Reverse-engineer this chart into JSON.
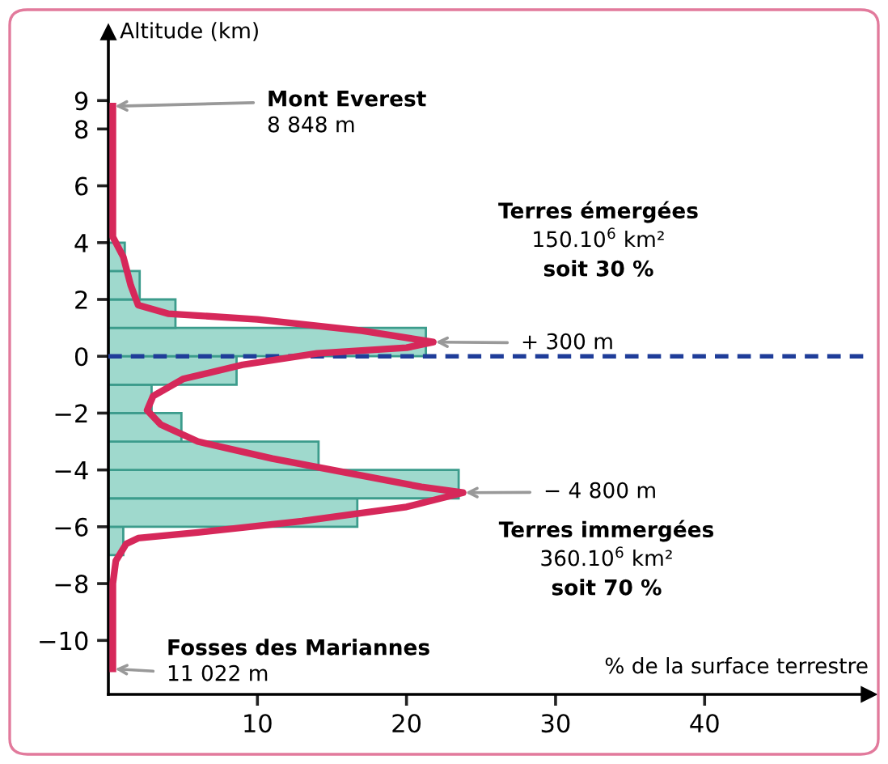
{
  "chart_data": {
    "type": "histogram",
    "orientation": "horizontal",
    "ylabel": "Altitude (km)",
    "xlabel": "% de la surface terrestre",
    "xlim": [
      0,
      51
    ],
    "xticks": [
      10,
      20,
      30,
      40
    ],
    "ylim": [
      -11.9,
      11.4
    ],
    "yticks": [
      9,
      8,
      6,
      4,
      2,
      0,
      -2,
      -4,
      -6,
      -8,
      -10
    ],
    "series": [
      {
        "color": "#9fd9cd",
        "bins": [
          -7,
          -6,
          -5,
          -4,
          -3,
          -2,
          -1,
          0,
          1,
          2,
          3,
          4
        ],
        "values": [
          1.0,
          16.7,
          23.5,
          14.1,
          4.9,
          2.9,
          8.6,
          21.3,
          4.5,
          2.1,
          1.1
        ]
      },
      {
        "type": "line",
        "color": "#d6285a",
        "x": [
          8.8,
          4.2,
          3.5,
          2.5,
          1.8,
          1.5,
          1.3,
          0.9,
          0.5,
          0.3,
          0.1,
          -0.3,
          -0.8,
          -1.4,
          -1.9,
          -2.4,
          -3.0,
          -3.6,
          -4.1,
          -4.6,
          -4.8,
          -5.3,
          -5.8,
          -6.2,
          -6.4,
          -6.6,
          -7.2,
          -8,
          -11.0
        ],
        "values": [
          0.3,
          0.3,
          1.0,
          1.5,
          2.0,
          4,
          10,
          17,
          21.8,
          20,
          14,
          9,
          5,
          3,
          2.6,
          3.5,
          6,
          11,
          16,
          21,
          23.8,
          20,
          13,
          6,
          2,
          1.2,
          0.5,
          0.3,
          0.3
        ]
      }
    ],
    "ref_lines": [
      {
        "axis": "y",
        "value": 0,
        "color": "#1f3d99",
        "line_style": "dashed"
      }
    ],
    "annotations": [
      {
        "text": "Mont Everest",
        "x": 0.3,
        "y": 8.8
      },
      "8 848 m",
      {
        "text": "+ 300 m",
        "x": 21.8,
        "y": 0.5
      },
      {
        "text": "− 4 800 m",
        "x": 23.8,
        "y": -4.8
      },
      "Fosses des Mariannes",
      {
        "text": "11 022 m",
        "x": 0.3,
        "y": -11.0
      },
      "Terres émergées",
      "150.10$^{6}$ km²",
      "soit 30 %",
      "Terres immergées",
      "360.10$^{6}$ km²",
      "soit 70 %"
    ]
  }
}
